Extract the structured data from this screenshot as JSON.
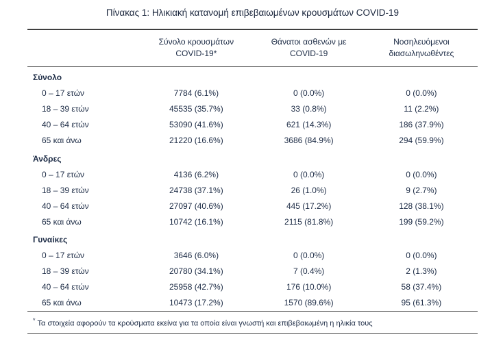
{
  "page": {
    "title": "Πίνακας 1: Ηλικιακή κατανομή επιβεβαιωμένων κρουσμάτων COVID-19"
  },
  "colors": {
    "text": "#1c2b45",
    "rule": "#3f3f3f",
    "background": "#ffffff"
  },
  "table": {
    "headers": {
      "cases_line1": "Σύνολο κρουσμάτων",
      "cases_line2": "COVID-19*",
      "deaths_line1": "Θάνατοι ασθενών με",
      "deaths_line2": "COVID-19",
      "intubated_line1": "Νοσηλευόμενοι",
      "intubated_line2": "διασωληνωθέντες"
    },
    "groups": [
      {
        "label": "Σύνολο",
        "rows": [
          {
            "age": "0 – 17 ετών",
            "cases": "7784 (6.1%)",
            "deaths": "0 (0.0%)",
            "intubated": "0 (0.0%)"
          },
          {
            "age": "18 – 39 ετών",
            "cases": "45535 (35.7%)",
            "deaths": "33 (0.8%)",
            "intubated": "11 (2.2%)"
          },
          {
            "age": "40 – 64 ετών",
            "cases": "53090 (41.6%)",
            "deaths": "621 (14.3%)",
            "intubated": "186 (37.9%)"
          },
          {
            "age": "65 και άνω",
            "cases": "21220 (16.6%)",
            "deaths": "3686 (84.9%)",
            "intubated": "294 (59.9%)"
          }
        ]
      },
      {
        "label": "Άνδρες",
        "rows": [
          {
            "age": "0 – 17 ετών",
            "cases": "4136 (6.2%)",
            "deaths": "0 (0.0%)",
            "intubated": "0 (0.0%)"
          },
          {
            "age": "18 – 39 ετών",
            "cases": "24738 (37.1%)",
            "deaths": "26 (1.0%)",
            "intubated": "9 (2.7%)"
          },
          {
            "age": "40 – 64 ετών",
            "cases": "27097 (40.6%)",
            "deaths": "445 (17.2%)",
            "intubated": "128 (38.1%)"
          },
          {
            "age": "65 και άνω",
            "cases": "10742 (16.1%)",
            "deaths": "2115 (81.8%)",
            "intubated": "199 (59.2%)"
          }
        ]
      },
      {
        "label": "Γυναίκες",
        "rows": [
          {
            "age": "0 – 17 ετών",
            "cases": "3646 (6.0%)",
            "deaths": "0 (0.0%)",
            "intubated": "0 (0.0%)"
          },
          {
            "age": "18 – 39 ετών",
            "cases": "20780 (34.1%)",
            "deaths": "7 (0.4%)",
            "intubated": "2 (1.3%)"
          },
          {
            "age": "40 – 64 ετών",
            "cases": "25958 (42.7%)",
            "deaths": "176 (10.0%)",
            "intubated": "58 (37.4%)"
          },
          {
            "age": "65 και άνω",
            "cases": "10473 (17.2%)",
            "deaths": "1570 (89.6%)",
            "intubated": "95 (61.3%)"
          }
        ]
      }
    ],
    "footnote_marker": "*",
    "footnote_text": "Τα στοιχεία αφορούν τα κρούσματα εκείνα για τα οποία είναι γνωστή και επιβεβαιωμένη η ηλικία τους"
  }
}
